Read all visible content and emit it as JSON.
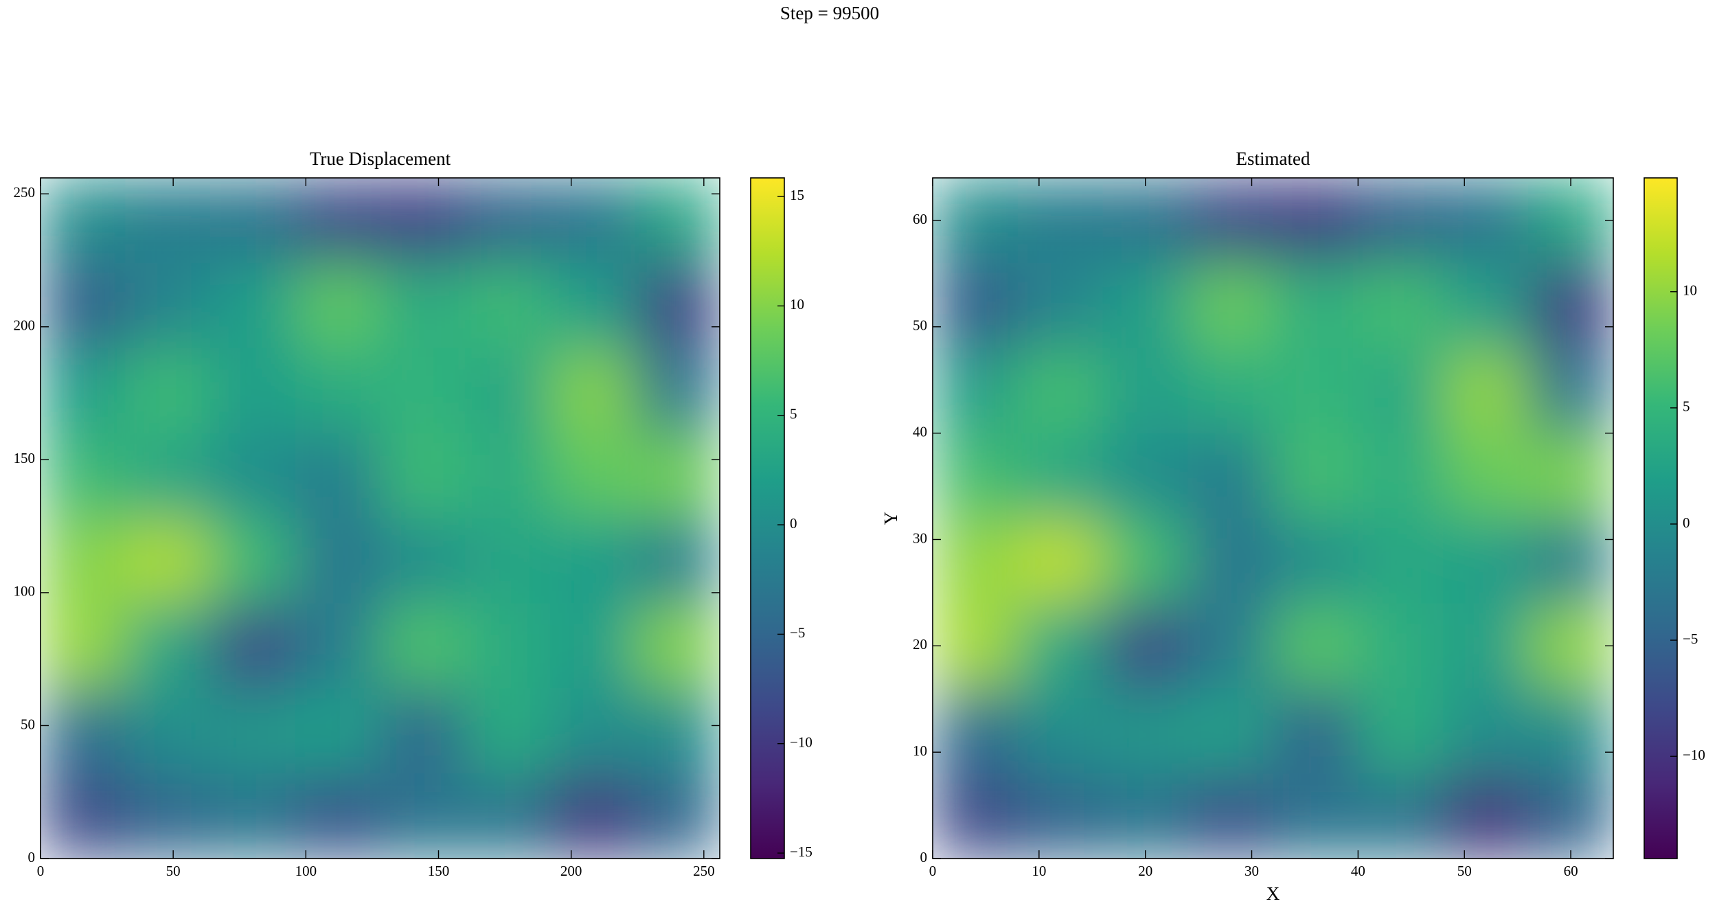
{
  "title": "Step = 99500",
  "chart_data": [
    {
      "type": "heatmap",
      "title": "True Displacement",
      "colormap": "viridis",
      "xlim": [
        0,
        256
      ],
      "ylim": [
        0,
        256
      ],
      "xticks": [
        0,
        50,
        100,
        150,
        200,
        250
      ],
      "yticks": [
        0,
        50,
        100,
        150,
        200,
        250
      ],
      "clim": [
        -15.25,
        15.85
      ],
      "cticks": [
        {
          "value": -15,
          "label": "−15"
        },
        {
          "value": -10,
          "label": "−10"
        },
        {
          "value": -5,
          "label": "−5"
        },
        0,
        5,
        10,
        15
      ],
      "z": [
        [
          0,
          -2,
          -3,
          -8,
          -9,
          -5,
          -3,
          3
        ],
        [
          -6,
          -1,
          2,
          8,
          4,
          6,
          2,
          -9
        ],
        [
          2,
          6,
          2,
          4,
          5,
          3,
          10,
          -3
        ],
        [
          6,
          3,
          0,
          -2,
          6,
          4,
          8,
          9
        ],
        [
          10,
          12,
          6,
          -3,
          0,
          3,
          2,
          -2
        ],
        [
          11,
          3,
          -8,
          -2,
          7,
          4,
          2,
          10
        ],
        [
          -4,
          0,
          1,
          2,
          -5,
          4,
          0,
          0
        ],
        [
          -8,
          -5,
          -3,
          -7,
          -3,
          -3,
          -10,
          -5
        ]
      ]
    },
    {
      "type": "heatmap",
      "title": "Estimated",
      "xlabel": "X",
      "ylabel": "Y",
      "colormap": "viridis",
      "xlim": [
        0,
        64
      ],
      "ylim": [
        0,
        64
      ],
      "xticks": [
        0,
        10,
        20,
        30,
        40,
        50,
        60
      ],
      "yticks": [
        0,
        10,
        20,
        30,
        40,
        50,
        60
      ],
      "clim": [
        -14.4,
        14.9
      ],
      "cticks": [
        {
          "value": -10,
          "label": "−10"
        },
        {
          "value": -5,
          "label": "−5"
        },
        0,
        5,
        10
      ],
      "z": [
        [
          0,
          -2,
          -3,
          -8,
          -9,
          -5,
          -3,
          3
        ],
        [
          -6,
          -1,
          2,
          8,
          4,
          6,
          2,
          -9
        ],
        [
          2,
          6,
          2,
          4,
          5,
          3,
          10,
          -3
        ],
        [
          6,
          3,
          0,
          -2,
          6,
          4,
          8,
          9
        ],
        [
          10,
          12,
          6,
          -3,
          0,
          3,
          2,
          -2
        ],
        [
          11,
          3,
          -8,
          -2,
          7,
          4,
          2,
          10
        ],
        [
          -4,
          0,
          1,
          2,
          -5,
          4,
          0,
          0
        ],
        [
          -8,
          -5,
          -3,
          -7,
          -3,
          -3,
          -10,
          -5
        ]
      ]
    }
  ]
}
